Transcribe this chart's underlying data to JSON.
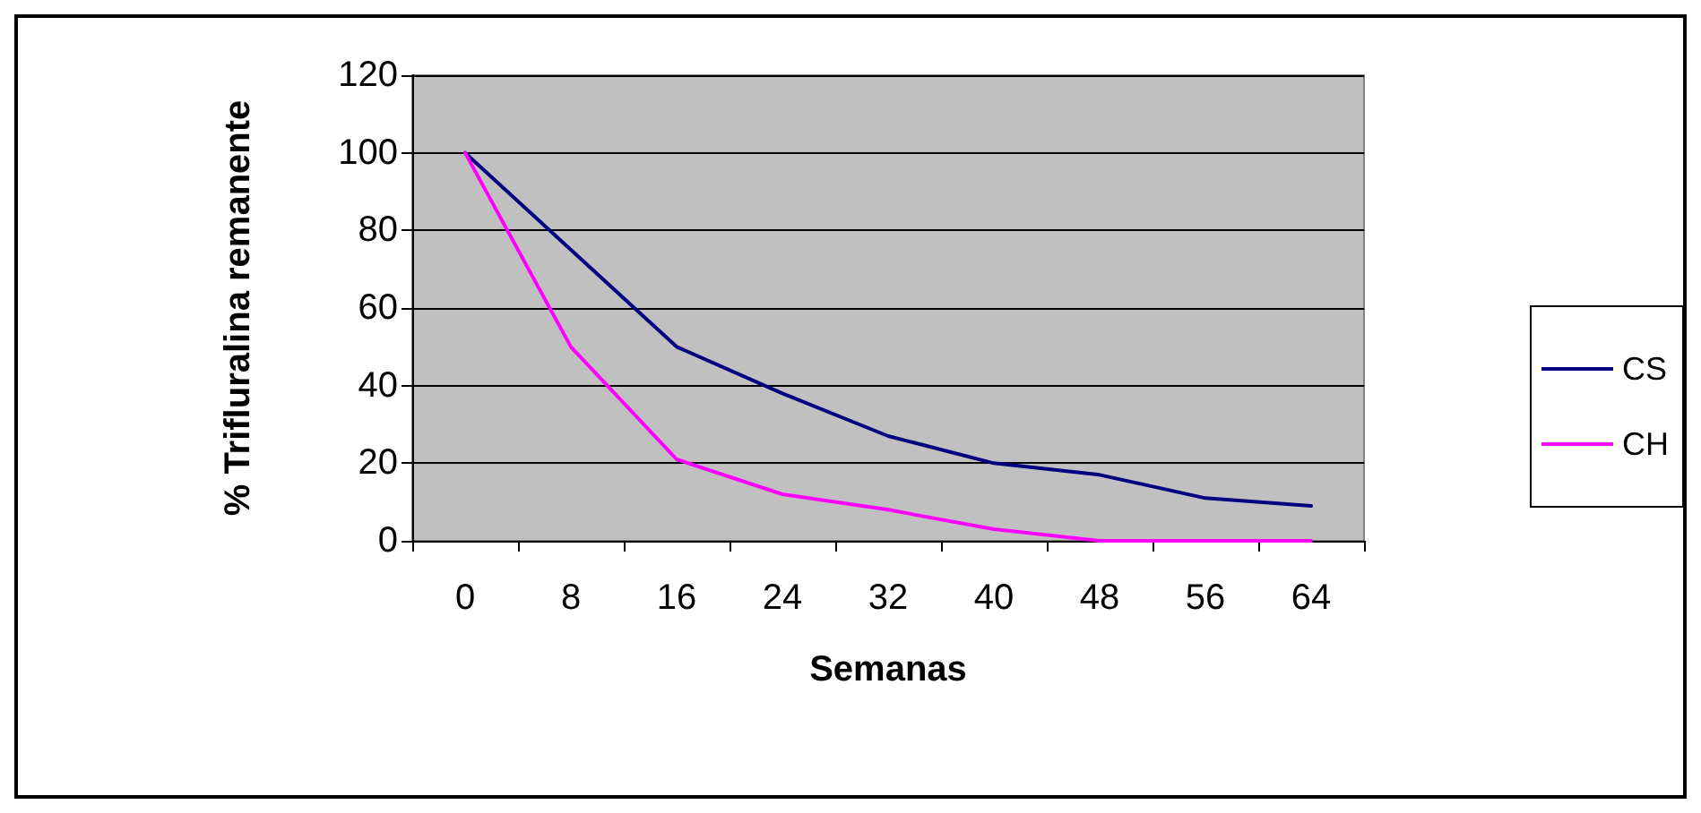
{
  "chart_data": {
    "type": "line",
    "xlabel": "Semanas",
    "ylabel": "% Trifluralina remanente",
    "categories": [
      "0",
      "8",
      "16",
      "24",
      "32",
      "40",
      "48",
      "56",
      "64"
    ],
    "series": [
      {
        "name": "CS",
        "color": "#000080",
        "values": [
          100,
          75,
          50,
          38,
          27,
          20,
          17,
          11,
          9
        ]
      },
      {
        "name": "CH",
        "color": "#ff00ff",
        "values": [
          100,
          50,
          21,
          12,
          8,
          3,
          0,
          0,
          0
        ]
      }
    ],
    "ylim": [
      0,
      120
    ],
    "yticks": [
      0,
      20,
      40,
      60,
      80,
      100,
      120
    ],
    "grid": "y",
    "legend": "right",
    "marker": "none",
    "line_style": "solid"
  }
}
